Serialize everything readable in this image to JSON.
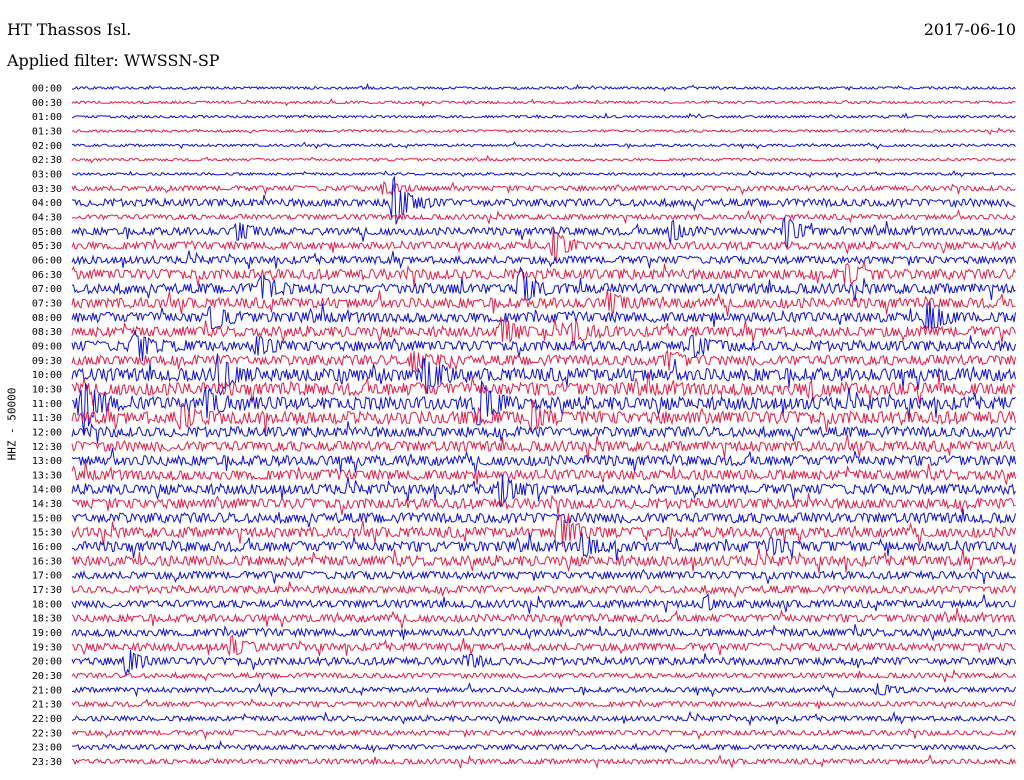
{
  "header": {
    "station": "HT Thassos Isl.",
    "date": "2017-06-10",
    "filter": "Applied filter: WWSSN-SP"
  },
  "chart_data": {
    "type": "line",
    "title": "HT Thassos Isl.",
    "ylabel": "HHZ - 50000",
    "colors": [
      "#1010d0",
      "#e0204a"
    ],
    "row_labels": [
      "00:00",
      "00:30",
      "01:00",
      "01:30",
      "02:00",
      "02:30",
      "03:00",
      "03:30",
      "04:00",
      "04:30",
      "05:00",
      "05:30",
      "06:00",
      "06:30",
      "07:00",
      "07:30",
      "08:00",
      "08:30",
      "09:00",
      "09:30",
      "10:00",
      "10:30",
      "11:00",
      "11:30",
      "12:00",
      "12:30",
      "13:00",
      "13:30",
      "14:00",
      "14:30",
      "15:00",
      "15:30",
      "16:00",
      "16:30",
      "17:00",
      "17:30",
      "18:00",
      "18:30",
      "19:00",
      "19:30",
      "20:00",
      "20:30",
      "21:00",
      "21:30",
      "22:00",
      "22:30",
      "23:00",
      "23:30"
    ],
    "noise_level": [
      1,
      1,
      1,
      1,
      1,
      1,
      1,
      2,
      3,
      2,
      3,
      3,
      3,
      4,
      4,
      4,
      4,
      4,
      4,
      4,
      5,
      5,
      5,
      5,
      4,
      4,
      4,
      4,
      4,
      4,
      4,
      4,
      4,
      4,
      3,
      3,
      3,
      3,
      3,
      3,
      3,
      2,
      2,
      2,
      2,
      2,
      2,
      2
    ],
    "events": [
      {
        "row": 7,
        "t": 0.33,
        "amp": 6
      },
      {
        "row": 8,
        "t": 0.34,
        "amp": 28
      },
      {
        "row": 10,
        "t": 0.175,
        "amp": 10
      },
      {
        "row": 10,
        "t": 0.634,
        "amp": 12
      },
      {
        "row": 10,
        "t": 0.755,
        "amp": 16
      },
      {
        "row": 11,
        "t": 0.51,
        "amp": 16
      },
      {
        "row": 13,
        "t": 0.82,
        "amp": 10
      },
      {
        "row": 14,
        "t": 0.2,
        "amp": 12
      },
      {
        "row": 14,
        "t": 0.474,
        "amp": 22
      },
      {
        "row": 15,
        "t": 0.57,
        "amp": 9
      },
      {
        "row": 16,
        "t": 0.147,
        "amp": 14
      },
      {
        "row": 16,
        "t": 0.905,
        "amp": 18
      },
      {
        "row": 17,
        "t": 0.455,
        "amp": 14
      },
      {
        "row": 17,
        "t": 0.53,
        "amp": 13
      },
      {
        "row": 18,
        "t": 0.065,
        "amp": 13
      },
      {
        "row": 18,
        "t": 0.195,
        "amp": 9
      },
      {
        "row": 18,
        "t": 0.657,
        "amp": 11
      },
      {
        "row": 19,
        "t": 0.36,
        "amp": 10
      },
      {
        "row": 19,
        "t": 0.63,
        "amp": 9
      },
      {
        "row": 20,
        "t": 0.155,
        "amp": 22
      },
      {
        "row": 20,
        "t": 0.373,
        "amp": 20
      },
      {
        "row": 21,
        "t": 0.78,
        "amp": 7
      },
      {
        "row": 22,
        "t": 0.012,
        "amp": 30
      },
      {
        "row": 22,
        "t": 0.142,
        "amp": 14
      },
      {
        "row": 22,
        "t": 0.43,
        "amp": 26
      },
      {
        "row": 23,
        "t": 0.115,
        "amp": 9
      },
      {
        "row": 23,
        "t": 0.487,
        "amp": 13
      },
      {
        "row": 28,
        "t": 0.454,
        "amp": 16
      },
      {
        "row": 31,
        "t": 0.515,
        "amp": 20
      },
      {
        "row": 32,
        "t": 0.54,
        "amp": 10
      },
      {
        "row": 32,
        "t": 0.74,
        "amp": 7
      },
      {
        "row": 36,
        "t": 0.67,
        "amp": 6
      },
      {
        "row": 39,
        "t": 0.168,
        "amp": 10
      },
      {
        "row": 40,
        "t": 0.057,
        "amp": 14
      },
      {
        "row": 40,
        "t": 0.42,
        "amp": 6
      },
      {
        "row": 42,
        "t": 0.853,
        "amp": 6
      }
    ]
  }
}
